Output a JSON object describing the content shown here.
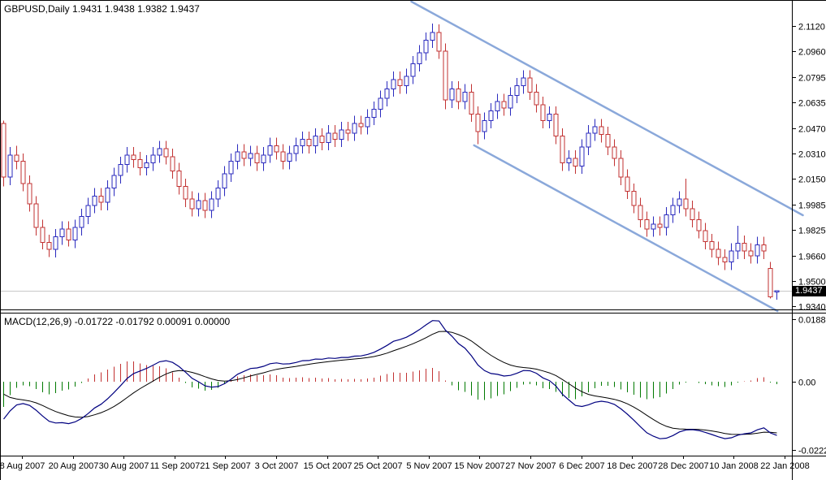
{
  "main_chart": {
    "title": "GBPUSD,Daily 1.9431 1.9438 1.9382 1.9437",
    "symbol": "GBPUSD",
    "timeframe": "Daily",
    "open": "1.9431",
    "high": "1.9438",
    "low": "1.9382",
    "close": "1.9437",
    "current_price_label": "1.9437"
  },
  "macd_panel": {
    "label": "MACD(12,26,9) -0.01722 -0.01792 0.00091 0.00000",
    "indicator": "MACD",
    "params": "12,26,9",
    "values": [
      "-0.01722",
      "-0.01792",
      "0.00091",
      "0.00000"
    ]
  },
  "colors": {
    "bull": "#2A2ABE",
    "bear": "#C23232",
    "channel": "#8AA8DA",
    "macd_main": "#000080",
    "macd_signal": "#000000",
    "hist_pos": "#C23232",
    "hist_neg": "#007A00",
    "price_line": "#C8C8C8",
    "tag_bg": "#000000",
    "tag_text": "#FFFFFF",
    "axis": "#000000",
    "text": "#000000",
    "background": "#FFFFFF"
  },
  "chart_data": [
    {
      "type": "candlestick",
      "title": "GBPUSD Daily",
      "grid": false,
      "legend_position": "none",
      "y_ticks": [
        {
          "v": 2.112,
          "label": "2.1120"
        },
        {
          "v": 2.096,
          "label": "2.0960"
        },
        {
          "v": 2.0795,
          "label": "2.0795"
        },
        {
          "v": 2.0635,
          "label": "2.0635"
        },
        {
          "v": 2.047,
          "label": "2.0470"
        },
        {
          "v": 2.031,
          "label": "2.0310"
        },
        {
          "v": 2.015,
          "label": "2.0150"
        },
        {
          "v": 1.9985,
          "label": "1.9985"
        },
        {
          "v": 1.9825,
          "label": "1.9825"
        },
        {
          "v": 1.966,
          "label": "1.9660"
        },
        {
          "v": 1.95,
          "label": "1.9500"
        },
        {
          "v": 1.934,
          "label": "1.9340"
        }
      ],
      "x_tick_labels": [
        "8 Aug 2007",
        "20 Aug 2007",
        "30 Aug 2007",
        "11 Sep 2007",
        "21 Sep 2007",
        "3 Oct 2007",
        "15 Oct 2007",
        "25 Oct 2007",
        "5 Nov 2007",
        "15 Nov 2007",
        "27 Nov 2007",
        "6 Dec 2007",
        "18 Dec 2007",
        "28 Dec 2007",
        "10 Jan 2008",
        "22 Jan 2008"
      ],
      "current_price": 1.9437,
      "channel_lines": [
        {
          "name": "upper",
          "from_bar": 62.75,
          "from_price": 2.1275,
          "to_bar": 123.0,
          "to_price": 1.9918
        },
        {
          "name": "lower",
          "from_bar": 72.4,
          "from_price": 2.0362,
          "to_bar": 119.1,
          "to_price": 1.9309
        }
      ],
      "candles_ohlc": [
        [
          2.05,
          2.052,
          2.01,
          2.016
        ],
        [
          2.016,
          2.035,
          2.011,
          2.03
        ],
        [
          2.03,
          2.036,
          2.021,
          2.026
        ],
        [
          2.026,
          2.031,
          2.007,
          2.012
        ],
        [
          2.012,
          2.017,
          1.994,
          1.999
        ],
        [
          1.999,
          2.004,
          1.979,
          1.984
        ],
        [
          1.984,
          1.989,
          1.97,
          1.9745
        ],
        [
          1.9745,
          1.9795,
          1.9651,
          1.97
        ],
        [
          1.97,
          1.983,
          1.965,
          1.978
        ],
        [
          1.978,
          1.988,
          1.973,
          1.983
        ],
        [
          1.983,
          1.988,
          1.972,
          1.976
        ],
        [
          1.976,
          1.989,
          1.971,
          1.984
        ],
        [
          1.984,
          1.996,
          1.979,
          1.991
        ],
        [
          1.991,
          2.003,
          1.986,
          1.998
        ],
        [
          1.998,
          2.009,
          1.993,
          2.004
        ],
        [
          2.004,
          2.009,
          1.995,
          2.0
        ],
        [
          2.0,
          2.014,
          1.995,
          2.009
        ],
        [
          2.009,
          2.022,
          2.004,
          2.017
        ],
        [
          2.017,
          2.029,
          2.012,
          2.024
        ],
        [
          2.024,
          2.035,
          2.019,
          2.03
        ],
        [
          2.03,
          2.035,
          2.022,
          2.027
        ],
        [
          2.027,
          2.032,
          2.017,
          2.022
        ],
        [
          2.022,
          2.03,
          2.017,
          2.025
        ],
        [
          2.025,
          2.035,
          2.02,
          2.03
        ],
        [
          2.03,
          2.039,
          2.025,
          2.034
        ],
        [
          2.034,
          2.039,
          2.024,
          2.029
        ],
        [
          2.029,
          2.034,
          2.015,
          2.02
        ],
        [
          2.02,
          2.025,
          2.005,
          2.01
        ],
        [
          2.01,
          2.015,
          1.997,
          2.002
        ],
        [
          2.002,
          2.007,
          1.991,
          1.996
        ],
        [
          1.996,
          2.006,
          1.991,
          2.001
        ],
        [
          2.001,
          2.006,
          1.99,
          1.995
        ],
        [
          1.995,
          2.007,
          1.99,
          2.002
        ],
        [
          2.002,
          2.014,
          1.997,
          2.009
        ],
        [
          2.009,
          2.023,
          2.004,
          2.018
        ],
        [
          2.018,
          2.031,
          2.013,
          2.026
        ],
        [
          2.026,
          2.037,
          2.021,
          2.032
        ],
        [
          2.032,
          2.037,
          2.023,
          2.028
        ],
        [
          2.028,
          2.036,
          2.023,
          2.031
        ],
        [
          2.031,
          2.036,
          2.02,
          2.025
        ],
        [
          2.025,
          2.035,
          2.02,
          2.03
        ],
        [
          2.03,
          2.041,
          2.025,
          2.036
        ],
        [
          2.036,
          2.041,
          2.027,
          2.032
        ],
        [
          2.032,
          2.037,
          2.021,
          2.026
        ],
        [
          2.026,
          2.036,
          2.021,
          2.031
        ],
        [
          2.031,
          2.041,
          2.026,
          2.036
        ],
        [
          2.036,
          2.045,
          2.031,
          2.04
        ],
        [
          2.04,
          2.045,
          2.031,
          2.036
        ],
        [
          2.036,
          2.047,
          2.031,
          2.042
        ],
        [
          2.042,
          2.047,
          2.033,
          2.038
        ],
        [
          2.038,
          2.049,
          2.033,
          2.044
        ],
        [
          2.044,
          2.049,
          2.035,
          2.04
        ],
        [
          2.04,
          2.051,
          2.035,
          2.046
        ],
        [
          2.046,
          2.051,
          2.039,
          2.044
        ],
        [
          2.044,
          2.055,
          2.039,
          2.05
        ],
        [
          2.05,
          2.055,
          2.043,
          2.048
        ],
        [
          2.048,
          2.059,
          2.043,
          2.054
        ],
        [
          2.054,
          2.064,
          2.049,
          2.059
        ],
        [
          2.059,
          2.071,
          2.054,
          2.066
        ],
        [
          2.066,
          2.077,
          2.061,
          2.072
        ],
        [
          2.072,
          2.083,
          2.067,
          2.078
        ],
        [
          2.078,
          2.083,
          2.069,
          2.074
        ],
        [
          2.074,
          2.085,
          2.069,
          2.08
        ],
        [
          2.08,
          2.093,
          2.075,
          2.088
        ],
        [
          2.088,
          2.1,
          2.083,
          2.095
        ],
        [
          2.095,
          2.108,
          2.09,
          2.103
        ],
        [
          2.103,
          2.1135,
          2.098,
          2.108
        ],
        [
          2.108,
          2.113,
          2.091,
          2.096
        ],
        [
          2.096,
          2.101,
          2.059,
          2.065
        ],
        [
          2.065,
          2.077,
          2.06,
          2.072
        ],
        [
          2.072,
          2.077,
          2.059,
          2.064
        ],
        [
          2.064,
          2.075,
          2.059,
          2.07
        ],
        [
          2.07,
          2.075,
          2.051,
          2.056
        ],
        [
          2.056,
          2.061,
          2.037,
          2.045
        ],
        [
          2.045,
          2.057,
          2.04,
          2.052
        ],
        [
          2.052,
          2.063,
          2.047,
          2.058
        ],
        [
          2.058,
          2.069,
          2.053,
          2.064
        ],
        [
          2.064,
          2.069,
          2.055,
          2.06
        ],
        [
          2.06,
          2.073,
          2.055,
          2.068
        ],
        [
          2.068,
          2.079,
          2.063,
          2.074
        ],
        [
          2.074,
          2.084,
          2.069,
          2.079
        ],
        [
          2.079,
          2.084,
          2.065,
          2.07
        ],
        [
          2.07,
          2.075,
          2.057,
          2.062
        ],
        [
          2.062,
          2.067,
          2.047,
          2.052
        ],
        [
          2.052,
          2.061,
          2.047,
          2.056
        ],
        [
          2.056,
          2.061,
          2.037,
          2.042
        ],
        [
          2.042,
          2.047,
          2.02,
          2.025
        ],
        [
          2.025,
          2.033,
          2.02,
          2.028
        ],
        [
          2.028,
          2.033,
          2.018,
          2.023
        ],
        [
          2.023,
          2.04,
          2.018,
          2.035
        ],
        [
          2.035,
          2.049,
          2.03,
          2.044
        ],
        [
          2.044,
          2.053,
          2.039,
          2.048
        ],
        [
          2.048,
          2.053,
          2.038,
          2.043
        ],
        [
          2.043,
          2.048,
          2.03,
          2.035
        ],
        [
          2.035,
          2.04,
          2.023,
          2.028
        ],
        [
          2.028,
          2.033,
          2.011,
          2.016
        ],
        [
          2.016,
          2.021,
          2.002,
          2.007
        ],
        [
          2.007,
          2.012,
          1.993,
          1.998
        ],
        [
          1.998,
          2.003,
          1.984,
          1.989
        ],
        [
          1.989,
          1.994,
          1.978,
          1.983
        ],
        [
          1.983,
          1.991,
          1.978,
          1.986
        ],
        [
          1.986,
          1.991,
          1.979,
          1.984
        ],
        [
          1.984,
          1.997,
          1.979,
          1.992
        ],
        [
          1.992,
          2.003,
          1.987,
          1.998
        ],
        [
          1.998,
          2.007,
          1.993,
          2.002
        ],
        [
          2.002,
          2.015,
          1.991,
          1.996
        ],
        [
          1.996,
          2.001,
          1.984,
          1.989
        ],
        [
          1.989,
          1.994,
          1.977,
          1.982
        ],
        [
          1.982,
          1.987,
          1.97,
          1.975
        ],
        [
          1.975,
          1.98,
          1.965,
          1.97
        ],
        [
          1.97,
          1.975,
          1.96,
          1.965
        ],
        [
          1.965,
          1.97,
          1.957,
          1.962
        ],
        [
          1.962,
          1.974,
          1.957,
          1.969
        ],
        [
          1.969,
          1.985,
          1.964,
          1.974
        ],
        [
          1.974,
          1.979,
          1.964,
          1.969
        ],
        [
          1.969,
          1.974,
          1.961,
          1.966
        ],
        [
          1.966,
          1.978,
          1.961,
          1.973
        ],
        [
          1.973,
          1.978,
          1.964,
          1.969
        ],
        [
          1.958,
          1.962,
          1.939,
          1.94
        ],
        [
          1.9431,
          1.9438,
          1.9382,
          1.9437
        ]
      ]
    },
    {
      "type": "macd",
      "params": {
        "fast": 12,
        "slow": 26,
        "signal": 9
      },
      "y_ticks": [
        {
          "v": 0.01885,
          "label": "0.01885"
        },
        {
          "v": 0.0,
          "label": "0.00"
        },
        {
          "v": -0.02221,
          "label": "-0.02221"
        }
      ],
      "current": {
        "main": -0.01722,
        "signal": -0.01792,
        "histogram": 0.00091,
        "extra": 0.0
      }
    }
  ]
}
